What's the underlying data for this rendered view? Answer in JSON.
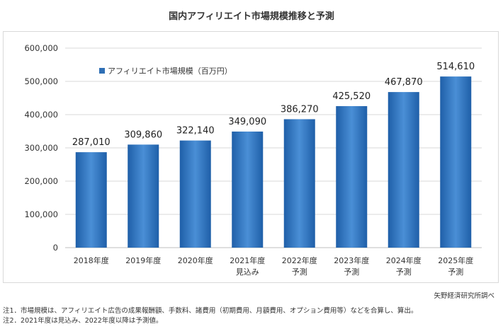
{
  "title": "国内アフィリエイト市場規模推移と予測",
  "legend": {
    "label": "アフィリエイト市場規模（百万円）",
    "color": "#2f6fb5"
  },
  "source": "矢野経済研究所調べ",
  "notes": [
    "注1．市場規模は、アフィリエイト広告の成果報酬額、手数料、諸費用（初期費用、月額費用、オプション費用等）などを合算し、算出。",
    "注2．2021年度は見込み、2022年度以降は予測値。"
  ],
  "chart_data": {
    "type": "bar",
    "title": "国内アフィリエイト市場規模推移と予測",
    "categories": [
      [
        "2018年度"
      ],
      [
        "2019年度"
      ],
      [
        "2020年度"
      ],
      [
        "2021年度",
        "見込み"
      ],
      [
        "2022年度",
        "予測"
      ],
      [
        "2023年度",
        "予測"
      ],
      [
        "2024年度",
        "予測"
      ],
      [
        "2025年度",
        "予測"
      ]
    ],
    "series": [
      {
        "name": "アフィリエイト市場規模（百万円）",
        "values": [
          287010,
          309860,
          322140,
          349090,
          386270,
          425520,
          467870,
          514610
        ]
      }
    ],
    "data_labels": [
      "287,010",
      "309,860",
      "322,140",
      "349,090",
      "386,270",
      "425,520",
      "467,870",
      "514,610"
    ],
    "y_ticks": [
      "0",
      "100,000",
      "200,000",
      "300,000",
      "400,000",
      "500,000",
      "600,000"
    ],
    "ylim": [
      0,
      600000
    ],
    "grid": true,
    "legend_position": "top-left",
    "bar_color": "#2f6fb5"
  }
}
